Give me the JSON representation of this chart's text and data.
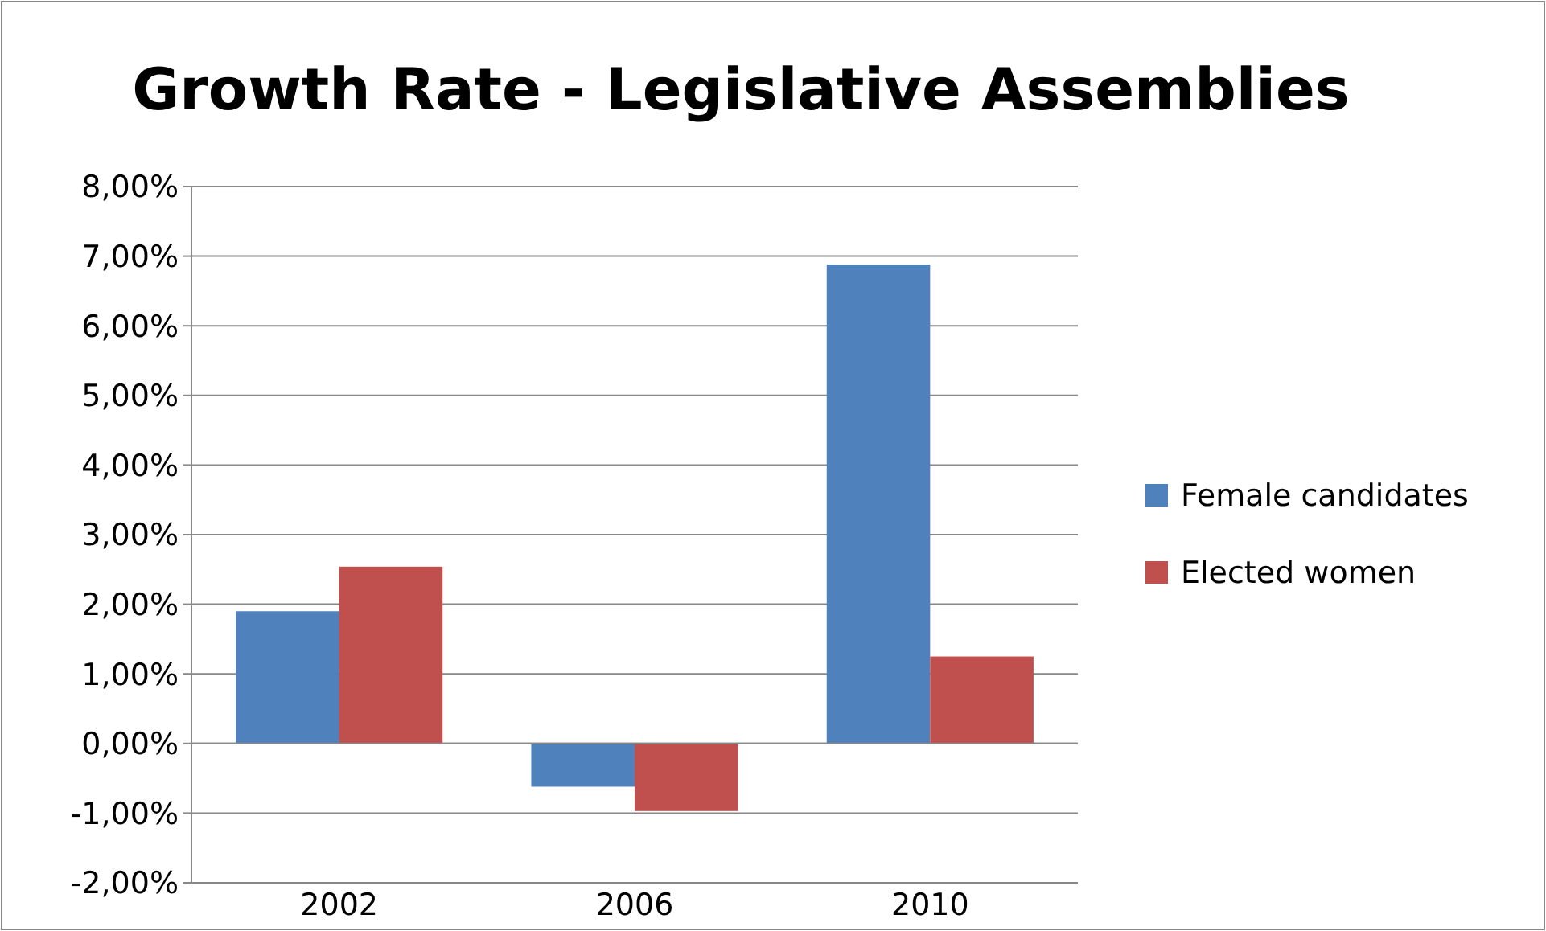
{
  "chart_data": {
    "type": "bar",
    "title": "Growth Rate - Legislative Assemblies",
    "categories": [
      "2002",
      "2006",
      "2010"
    ],
    "series": [
      {
        "name": "Female candidates",
        "color": "#4f81bd",
        "values": [
          1.9,
          -0.62,
          6.88
        ]
      },
      {
        "name": "Elected women",
        "color": "#c0504d",
        "values": [
          2.54,
          -0.97,
          1.25
        ]
      }
    ],
    "ylim": [
      -2,
      8
    ],
    "yticks": [
      {
        "value": -2,
        "label": "-2,00%"
      },
      {
        "value": -1,
        "label": "-1,00%"
      },
      {
        "value": 0,
        "label": "0,00%"
      },
      {
        "value": 1,
        "label": "1,00%"
      },
      {
        "value": 2,
        "label": "2,00%"
      },
      {
        "value": 3,
        "label": "3,00%"
      },
      {
        "value": 4,
        "label": "4,00%"
      },
      {
        "value": 5,
        "label": "5,00%"
      },
      {
        "value": 6,
        "label": "6,00%"
      },
      {
        "value": 7,
        "label": "7,00%"
      },
      {
        "value": 8,
        "label": "8,00%"
      }
    ],
    "grid": "y",
    "legend": "right"
  }
}
